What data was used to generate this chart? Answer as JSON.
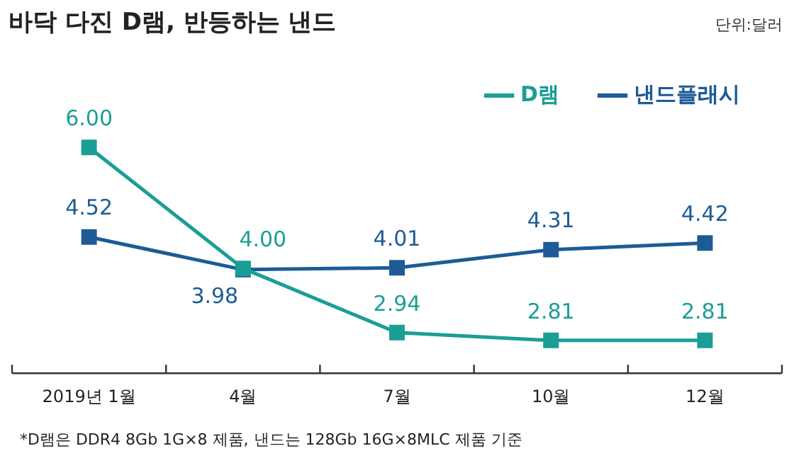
{
  "chart_data": {
    "type": "line",
    "title": "바닥 다진 D램, 반등하는 낸드",
    "categories": [
      "2019년 1월",
      "4월",
      "7월",
      "10월",
      "12월"
    ],
    "series": [
      {
        "name": "D램",
        "color": "#1a9e96",
        "values": [
          6.0,
          4.0,
          2.94,
          2.81,
          2.81
        ],
        "value_labels": [
          "6.00",
          "4.00",
          "2.94",
          "2.81",
          "2.81"
        ]
      },
      {
        "name": "낸드플래시",
        "color": "#1d5b96",
        "values": [
          4.52,
          3.98,
          4.01,
          4.31,
          4.42
        ],
        "value_labels": [
          "4.52",
          "3.98",
          "4.01",
          "4.31",
          "4.42"
        ]
      }
    ],
    "marker": "square",
    "line_style": "solid",
    "grid": false,
    "legend": "top right",
    "tick_labels": "x",
    "annotations": [
      "단위:달러",
      "*D램은 DDR4 8Gb 1G×8 제품, 낸드는 128Gb 16G×8MLC 제품 기준"
    ]
  }
}
